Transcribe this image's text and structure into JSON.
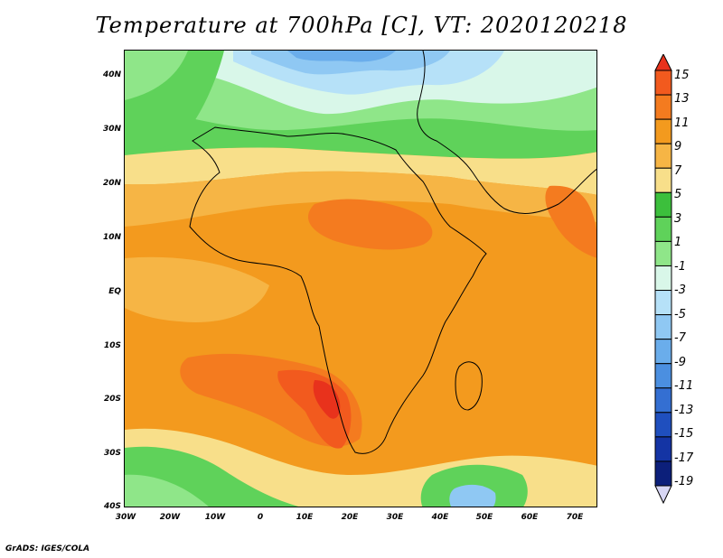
{
  "title": "Temperature at 700hPa [C], VT: 2020120218",
  "credit": "GrADS: IGES/COLA",
  "map": {
    "lat_labels": [
      "40N",
      "30N",
      "20N",
      "10N",
      "EQ",
      "10S",
      "20S",
      "30S",
      "40S"
    ],
    "lon_labels": [
      "30W",
      "20W",
      "10W",
      "0",
      "10E",
      "20E",
      "30E",
      "40E",
      "50E",
      "60E",
      "70E"
    ]
  },
  "colorbar": {
    "labels": [
      "15",
      "13",
      "11",
      "9",
      "7",
      "5",
      "3",
      "1",
      "-1",
      "-3",
      "-5",
      "-7",
      "-9",
      "-11",
      "-13",
      "-15",
      "-17",
      "-19"
    ],
    "colors": [
      "#e8321c",
      "#f25a1e",
      "#f47b1f",
      "#f39a1e",
      "#f6b545",
      "#f8df8a",
      "#3cbf3c",
      "#5fd25a",
      "#8fe689",
      "#d9f7e9",
      "#b6e1f8",
      "#8fc8f3",
      "#6aadeb",
      "#4b8fe0",
      "#346fd2",
      "#1f4fbe",
      "#1434a4",
      "#0c1f7a",
      "#d7d6f4"
    ]
  }
}
